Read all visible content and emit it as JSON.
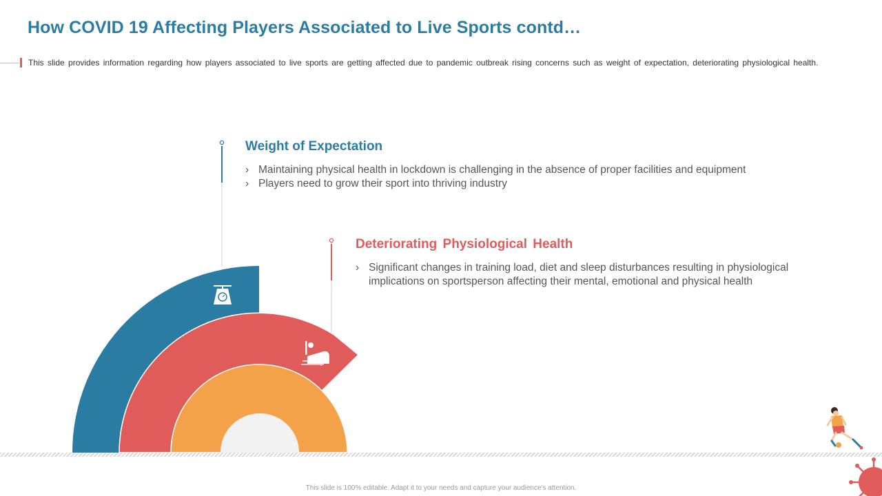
{
  "title": "How COVID 19 Affecting Players Associated to Live Sports contd…",
  "subtitle": "This slide provides information regarding how players associated to live sports are getting affected due to pandemic outbreak rising concerns such as weight of expectation, deteriorating physiological health.",
  "colors": {
    "blue": "#2b7ca3",
    "red": "#e05c5a",
    "orange": "#f4a24a",
    "center": "#f2f2f2"
  },
  "sections": [
    {
      "heading": "Weight of Expectation",
      "icon": "weighing-scale-icon",
      "bullets": [
        "Maintaining physical health in lockdown is challenging in the absence of proper facilities and equipment",
        "Players need to grow their sport into thriving industry"
      ]
    },
    {
      "heading": "Deteriorating Physiological Health",
      "icon": "patient-injection-icon",
      "bullets": [
        "Significant changes in training load, diet and sleep disturbances resulting in physiological implications on sportsperson affecting their mental, emotional and physical health"
      ]
    }
  ],
  "bullet_glyph": "›",
  "footer": "This slide is 100% editable. Adapt it to your needs and capture your audience's attention.",
  "decorations": [
    "soccer-player-illustration",
    "virus-illustration"
  ]
}
